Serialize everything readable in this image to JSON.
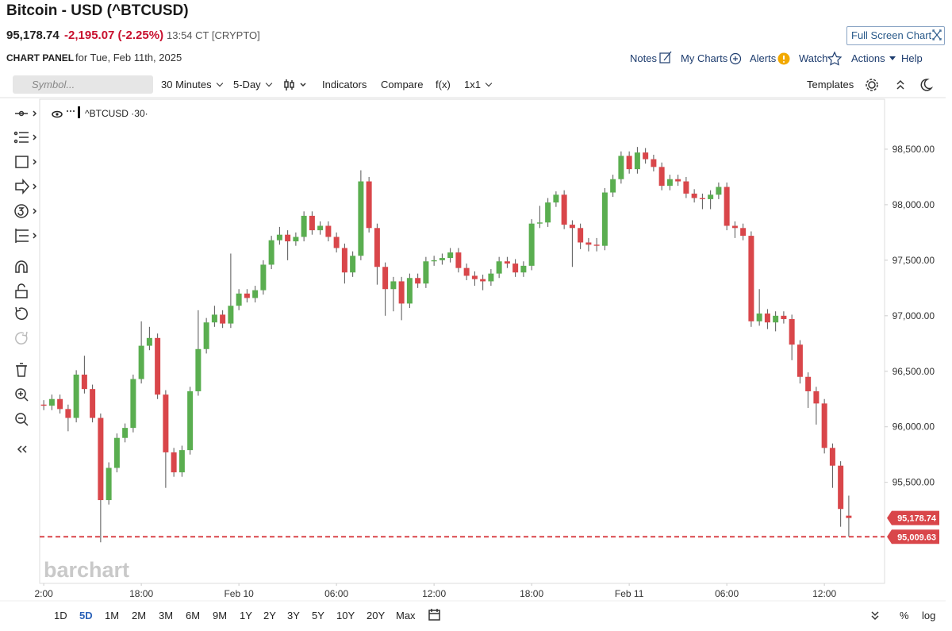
{
  "header": {
    "title": "Bitcoin - USD (^BTCUSD)",
    "last": "95,178.74",
    "change": "-2,195.07 (-2.25%)",
    "time": "13:54 CT [CRYPTO]",
    "fullscreen": "Full Screen Chart"
  },
  "panel": {
    "title": "CHART PANEL",
    "date": "for Tue, Feb 11th, 2025",
    "menu": [
      "Notes",
      "My Charts",
      "Alerts",
      "Watch",
      "Actions",
      "Help"
    ]
  },
  "toolbar": {
    "search": "Symbol...",
    "items": [
      "30 Minutes",
      "5-Day",
      "Indicators",
      "Compare",
      "f(x)",
      "1x1"
    ],
    "templates": "Templates"
  },
  "periods": {
    "items": [
      "1D",
      "5D",
      "1M",
      "2M",
      "3M",
      "6M",
      "9M",
      "1Y",
      "2Y",
      "3Y",
      "5Y",
      "10Y",
      "20Y",
      "Max"
    ],
    "active": "5D"
  },
  "scale_options": [
    "%",
    "log"
  ],
  "watermark": "barchart",
  "chart_data": {
    "type": "candlestick",
    "legend_label": "^BTCUSD ·30·",
    "up_color": "#5aae50",
    "down_color": "#d9464a",
    "open": [
      96200,
      96190,
      96250,
      96160,
      96080,
      96470,
      96340,
      96080,
      95340,
      95630,
      95900,
      95990,
      96430,
      96730,
      96800,
      96290,
      95770,
      95590,
      95790,
      96320,
      96700,
      96940,
      97010,
      96930,
      97090,
      97200,
      97160,
      97230,
      97460,
      97680,
      97730,
      97670,
      97710,
      97900,
      97770,
      97810,
      97710,
      97610,
      97390,
      97540,
      98210,
      97790,
      97440,
      97240,
      97310,
      97110,
      97340,
      97290,
      97490,
      97500,
      97520,
      97570,
      97430,
      97360,
      97330,
      97310,
      97380,
      97490,
      97470,
      97390,
      97450,
      97830,
      97840,
      98020,
      98090,
      97820,
      97790,
      97660,
      97640,
      97630,
      98110,
      98230,
      98440,
      98320,
      98470,
      98410,
      98340,
      98170,
      98230,
      98210,
      98100,
      98060,
      98050,
      98090,
      98160,
      97810,
      97790,
      97720,
      96950,
      97020,
      96940,
      97000,
      96970,
      96740,
      96450,
      96320,
      96210,
      95810,
      95650,
      95200
    ],
    "high": [
      96240,
      96290,
      96290,
      96200,
      96510,
      96640,
      96380,
      96120,
      95680,
      95940,
      96030,
      96470,
      96950,
      96900,
      96840,
      96330,
      95810,
      95830,
      96360,
      97050,
      96980,
      97090,
      97050,
      97560,
      97240,
      97240,
      97270,
      97500,
      97720,
      97800,
      97770,
      97750,
      97940,
      97940,
      97850,
      97850,
      97750,
      97650,
      97580,
      98310,
      98250,
      97830,
      97480,
      97350,
      97350,
      97380,
      97380,
      97530,
      97540,
      97560,
      97610,
      97610,
      97470,
      97400,
      97370,
      97420,
      97530,
      97530,
      97510,
      97490,
      97870,
      97990,
      98060,
      98120,
      98130,
      97860,
      97830,
      97700,
      97700,
      98150,
      98270,
      98480,
      98480,
      98520,
      98510,
      98450,
      98380,
      98270,
      98270,
      98250,
      98140,
      98100,
      98130,
      98200,
      98200,
      97850,
      97830,
      97760,
      97240,
      97060,
      97040,
      97040,
      97010,
      96780,
      96490,
      96360,
      96250,
      95850,
      95690,
      95380
    ],
    "low": [
      96150,
      96150,
      96120,
      95960,
      96040,
      96300,
      96040,
      94960,
      95300,
      95590,
      95860,
      95950,
      96390,
      96690,
      96250,
      95450,
      95550,
      95550,
      95750,
      96280,
      96660,
      96900,
      96890,
      96890,
      97050,
      97120,
      97120,
      97190,
      97420,
      97640,
      97500,
      97630,
      97670,
      97730,
      97730,
      97670,
      97570,
      97290,
      97350,
      97500,
      97750,
      97280,
      97000,
      97040,
      96960,
      97070,
      97250,
      97250,
      97450,
      97460,
      97480,
      97390,
      97320,
      97270,
      97230,
      97270,
      97340,
      97430,
      97350,
      97350,
      97410,
      97790,
      97800,
      97980,
      97780,
      97440,
      97600,
      97580,
      97580,
      97590,
      98070,
      98190,
      98280,
      98280,
      98370,
      98300,
      98130,
      98130,
      98170,
      98060,
      98020,
      97960,
      97960,
      98050,
      97770,
      97700,
      97680,
      96900,
      96910,
      96880,
      96860,
      96930,
      96600,
      96390,
      96170,
      96020,
      95760,
      95450,
      95100,
      95010
    ],
    "close": [
      96190,
      96250,
      96160,
      96080,
      96470,
      96340,
      96080,
      95340,
      95630,
      95900,
      95990,
      96430,
      96730,
      96800,
      96290,
      95770,
      95590,
      95790,
      96320,
      96700,
      96940,
      97010,
      96930,
      97090,
      97200,
      97160,
      97230,
      97460,
      97680,
      97730,
      97670,
      97710,
      97900,
      97770,
      97810,
      97710,
      97610,
      97390,
      97540,
      98210,
      97790,
      97440,
      97240,
      97310,
      97110,
      97340,
      97290,
      97490,
      97500,
      97520,
      97570,
      97430,
      97360,
      97330,
      97310,
      97380,
      97490,
      97470,
      97390,
      97450,
      97830,
      97840,
      98020,
      98090,
      97820,
      97790,
      97660,
      97640,
      97630,
      98110,
      98230,
      98440,
      98320,
      98470,
      98410,
      98340,
      98170,
      98230,
      98210,
      98100,
      98060,
      98050,
      98090,
      98160,
      97810,
      97790,
      97720,
      96950,
      97020,
      96940,
      97000,
      96970,
      96740,
      96450,
      96320,
      96210,
      95810,
      95650,
      95260,
      95178.74
    ],
    "xlim": [
      -0.5,
      103.4
    ],
    "xticks": [
      {
        "value": 0,
        "label": "2:00"
      },
      {
        "value": 12,
        "label": "18:00"
      },
      {
        "value": 24,
        "label": "Feb 10"
      },
      {
        "value": 36,
        "label": "06:00"
      },
      {
        "value": 48,
        "label": "12:00"
      },
      {
        "value": 60,
        "label": "18:00"
      },
      {
        "value": 72,
        "label": "Feb 11"
      },
      {
        "value": 84,
        "label": "06:00"
      },
      {
        "value": 96,
        "label": "12:00"
      }
    ],
    "ylim": [
      94590,
      98950
    ],
    "yticks": [
      {
        "value": 95500,
        "label": "95,500.00"
      },
      {
        "value": 96000,
        "label": "96,000.00"
      },
      {
        "value": 96500,
        "label": "96,500.00"
      },
      {
        "value": 97000,
        "label": "97,000.00"
      },
      {
        "value": 97500,
        "label": "97,500.00"
      },
      {
        "value": 98000,
        "label": "98,000.00"
      },
      {
        "value": 98500,
        "label": "98,500.00"
      }
    ],
    "grid": false,
    "last_price": {
      "value": 95178.74,
      "label": "95,178.74"
    },
    "reference_line": {
      "value": 95009.63,
      "label": "95,009.63"
    },
    "tag_color": "#d9464a"
  }
}
